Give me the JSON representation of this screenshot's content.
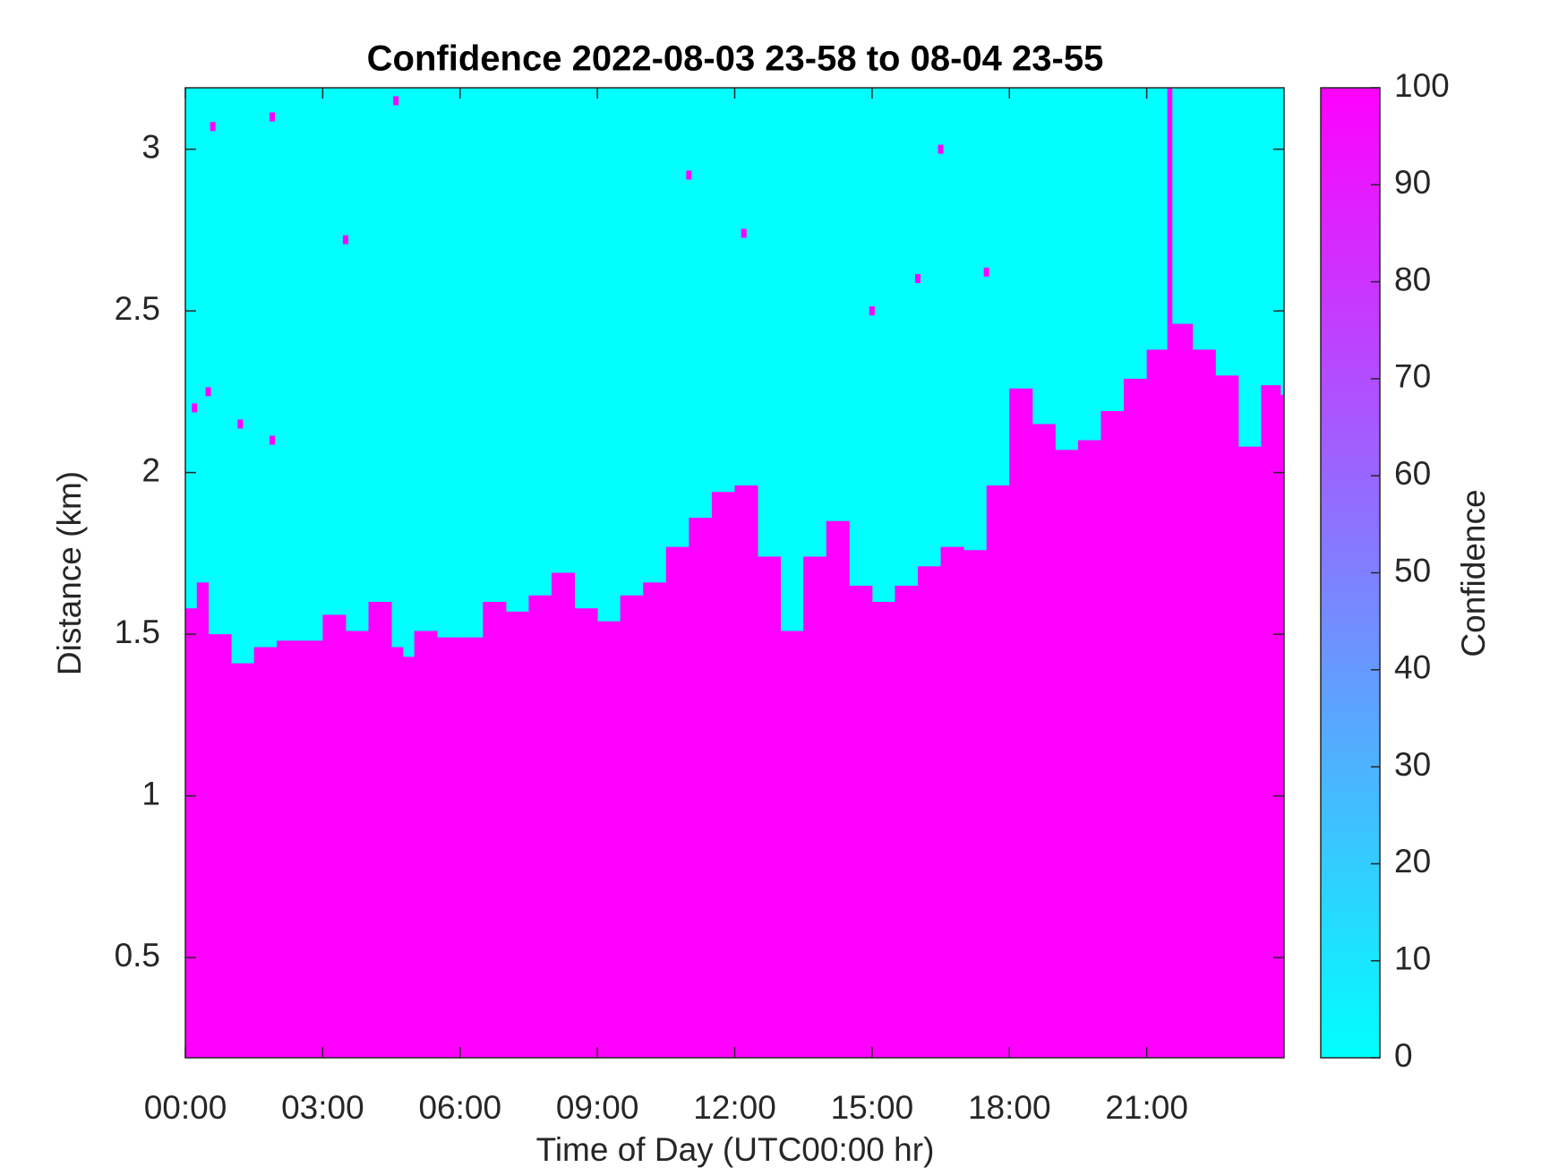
{
  "chart_data": {
    "type": "heatmap",
    "title": "Confidence 2022-08-03 23-58 to 08-04 23-55",
    "x_label": "Time of Day (UTC00:00 hr)",
    "y_label": "Distance (km)",
    "colorbar_label": "Confidence",
    "colormap": [
      "#00ffff",
      "#ff00ff"
    ],
    "clim": [
      0,
      100
    ],
    "cticks": [
      0,
      10,
      20,
      30,
      40,
      50,
      60,
      70,
      80,
      90,
      100
    ],
    "fill_value": 100,
    "xlim": [
      0,
      24
    ],
    "xticks": [
      {
        "value": 0,
        "label": "00:00"
      },
      {
        "value": 3,
        "label": "03:00"
      },
      {
        "value": 6,
        "label": "06:00"
      },
      {
        "value": 9,
        "label": "09:00"
      },
      {
        "value": 12,
        "label": "12:00"
      },
      {
        "value": 15,
        "label": "15:00"
      },
      {
        "value": 18,
        "label": "18:00"
      },
      {
        "value": 21,
        "label": "21:00"
      }
    ],
    "ylim": [
      0.19,
      3.19
    ],
    "yticks": [
      0.5,
      1,
      1.5,
      2,
      2.5,
      3
    ],
    "x": [
      0,
      0.25,
      0.5,
      1,
      1.5,
      2,
      2.5,
      3,
      3.5,
      4,
      4.5,
      4.75,
      5,
      5.5,
      6,
      6.5,
      7,
      7.5,
      8,
      8.5,
      9,
      9.5,
      10,
      10.5,
      11,
      11.5,
      12,
      12.5,
      13,
      13.5,
      14,
      14.5,
      15,
      15.5,
      16,
      16.5,
      17,
      17.5,
      18,
      18.5,
      19,
      19.5,
      20,
      20.5,
      21,
      21.45,
      21.55,
      22,
      22.5,
      23,
      23.5,
      23.92
    ],
    "values": [
      1.58,
      1.66,
      1.5,
      1.41,
      1.46,
      1.48,
      1.48,
      1.56,
      1.51,
      1.6,
      1.46,
      1.43,
      1.51,
      1.49,
      1.49,
      1.6,
      1.57,
      1.62,
      1.69,
      1.58,
      1.54,
      1.62,
      1.66,
      1.77,
      1.86,
      1.94,
      1.96,
      1.74,
      1.51,
      1.74,
      1.85,
      1.65,
      1.6,
      1.65,
      1.71,
      1.77,
      1.76,
      1.96,
      2.26,
      2.15,
      2.07,
      2.1,
      2.19,
      2.29,
      2.38,
      3.19,
      2.46,
      2.38,
      2.3,
      2.08,
      2.27,
      2.24
    ],
    "dots": {
      "x": [
        0.2,
        0.5,
        1.2,
        1.9,
        0.6,
        1.9,
        4.6,
        11.0,
        16.5,
        12.2,
        3.5,
        15.0,
        17.5,
        16.0
      ],
      "y": [
        2.2,
        2.25,
        2.15,
        2.1,
        3.07,
        3.1,
        3.15,
        2.92,
        3.0,
        2.74,
        2.72,
        2.5,
        2.62,
        2.6
      ]
    }
  }
}
